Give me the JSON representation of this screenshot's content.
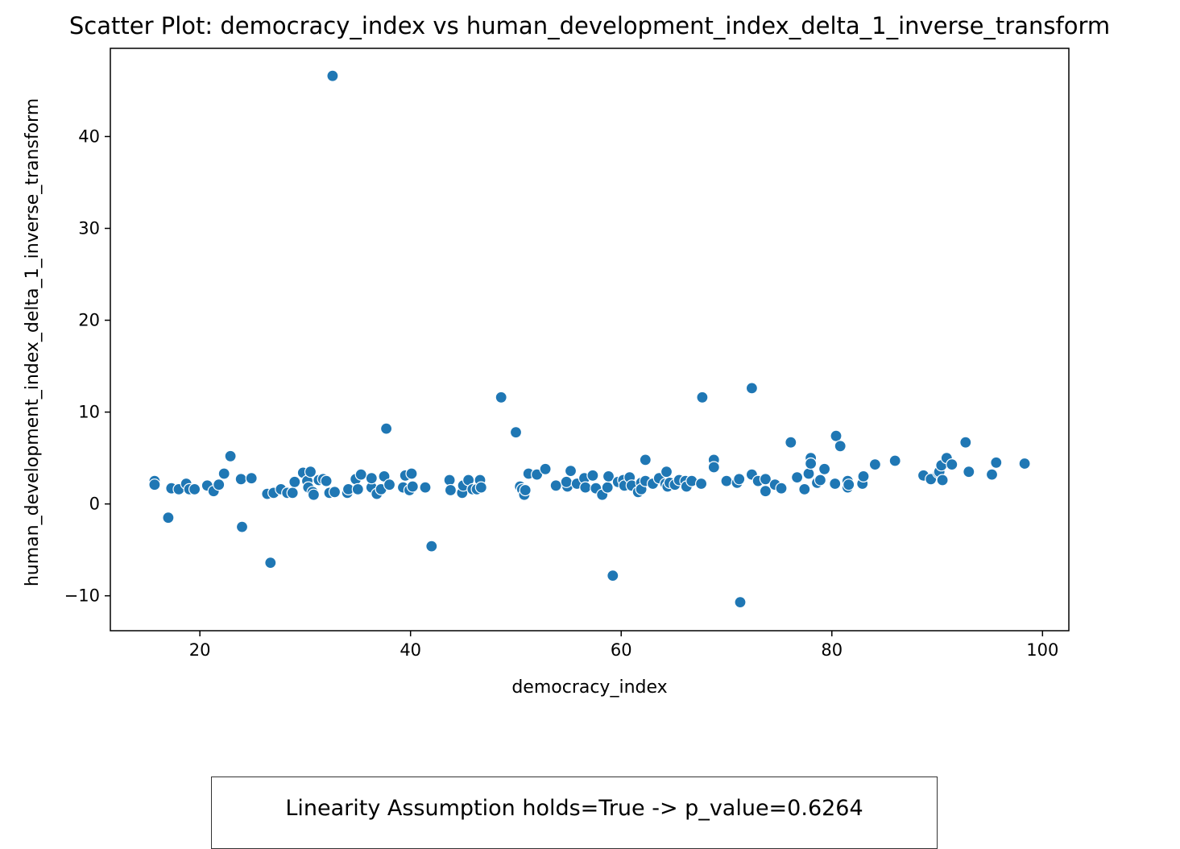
{
  "colors": {
    "point": "#1f77b4",
    "point_edge": "#ffffff",
    "axis": "#000000",
    "annotation_border": "#333333"
  },
  "annotation": {
    "text": "Linearity Assumption holds=True -> p_value=0.6264"
  },
  "chart_data": {
    "type": "scatter",
    "title": "Scatter Plot: democracy_index vs human_development_index_delta_1_inverse_transform",
    "xlabel": "democracy_index",
    "ylabel": "human_development_index_delta_1_inverse_transform",
    "xlim": [
      11.5,
      102.5
    ],
    "ylim": [
      -13.8,
      49.6
    ],
    "xticks": [
      20,
      40,
      60,
      80,
      100
    ],
    "yticks": [
      -10,
      0,
      10,
      20,
      30,
      40
    ],
    "grid": false,
    "legend": "none",
    "points": [
      [
        15.7,
        2.5
      ],
      [
        15.7,
        2.1
      ],
      [
        17.0,
        -1.5
      ],
      [
        17.3,
        1.7
      ],
      [
        18.0,
        1.6
      ],
      [
        18.7,
        2.2
      ],
      [
        19.0,
        1.6
      ],
      [
        19.5,
        1.6
      ],
      [
        20.7,
        2.0
      ],
      [
        21.3,
        1.4
      ],
      [
        21.8,
        2.1
      ],
      [
        22.3,
        3.3
      ],
      [
        22.9,
        5.2
      ],
      [
        23.9,
        2.7
      ],
      [
        24.0,
        -2.5
      ],
      [
        24.9,
        2.8
      ],
      [
        26.4,
        1.1
      ],
      [
        26.7,
        -6.4
      ],
      [
        27.0,
        1.2
      ],
      [
        27.7,
        1.6
      ],
      [
        28.3,
        1.2
      ],
      [
        28.8,
        1.2
      ],
      [
        29.0,
        2.4
      ],
      [
        29.8,
        3.4
      ],
      [
        30.2,
        2.5
      ],
      [
        30.5,
        3.5
      ],
      [
        30.3,
        1.8
      ],
      [
        30.7,
        1.3
      ],
      [
        30.8,
        1.0
      ],
      [
        31.3,
        2.6
      ],
      [
        31.7,
        2.7
      ],
      [
        32.0,
        2.5
      ],
      [
        32.3,
        1.2
      ],
      [
        32.6,
        46.6
      ],
      [
        32.8,
        1.3
      ],
      [
        34.0,
        1.2
      ],
      [
        34.1,
        1.6
      ],
      [
        34.8,
        2.7
      ],
      [
        35.0,
        1.6
      ],
      [
        35.3,
        3.2
      ],
      [
        36.3,
        1.8
      ],
      [
        36.3,
        2.8
      ],
      [
        36.8,
        1.1
      ],
      [
        37.2,
        1.6
      ],
      [
        37.5,
        3.0
      ],
      [
        37.7,
        8.2
      ],
      [
        38.0,
        2.1
      ],
      [
        39.3,
        1.8
      ],
      [
        39.5,
        3.1
      ],
      [
        39.9,
        1.5
      ],
      [
        40.1,
        3.3
      ],
      [
        40.2,
        1.9
      ],
      [
        41.4,
        1.8
      ],
      [
        42.0,
        -4.6
      ],
      [
        43.7,
        2.6
      ],
      [
        43.8,
        1.5
      ],
      [
        44.9,
        1.2
      ],
      [
        45.0,
        2.0
      ],
      [
        45.5,
        2.6
      ],
      [
        45.9,
        1.6
      ],
      [
        46.3,
        1.6
      ],
      [
        46.6,
        2.6
      ],
      [
        46.7,
        1.8
      ],
      [
        48.6,
        11.6
      ],
      [
        50.0,
        7.8
      ],
      [
        50.4,
        1.9
      ],
      [
        50.6,
        1.6
      ],
      [
        50.8,
        1.0
      ],
      [
        50.9,
        1.5
      ],
      [
        51.2,
        3.3
      ],
      [
        52.0,
        3.2
      ],
      [
        52.8,
        3.8
      ],
      [
        53.8,
        2.0
      ],
      [
        54.9,
        1.9
      ],
      [
        54.8,
        2.4
      ],
      [
        55.2,
        3.6
      ],
      [
        55.8,
        2.2
      ],
      [
        56.5,
        2.8
      ],
      [
        56.6,
        1.8
      ],
      [
        57.3,
        3.1
      ],
      [
        57.6,
        1.7
      ],
      [
        58.2,
        1.0
      ],
      [
        58.7,
        1.8
      ],
      [
        58.8,
        3.0
      ],
      [
        59.2,
        -7.8
      ],
      [
        59.7,
        2.4
      ],
      [
        60.2,
        2.6
      ],
      [
        60.3,
        2.0
      ],
      [
        60.8,
        2.9
      ],
      [
        61.0,
        2.0
      ],
      [
        61.6,
        1.3
      ],
      [
        61.9,
        2.3
      ],
      [
        61.9,
        1.6
      ],
      [
        62.3,
        2.5
      ],
      [
        62.3,
        4.8
      ],
      [
        63.0,
        2.2
      ],
      [
        63.6,
        2.8
      ],
      [
        64.2,
        2.2
      ],
      [
        64.3,
        3.5
      ],
      [
        64.4,
        1.9
      ],
      [
        64.6,
        2.3
      ],
      [
        65.1,
        2.1
      ],
      [
        65.5,
        2.6
      ],
      [
        66.1,
        2.5
      ],
      [
        66.2,
        1.9
      ],
      [
        66.7,
        2.5
      ],
      [
        67.6,
        2.2
      ],
      [
        67.7,
        11.6
      ],
      [
        68.8,
        4.8
      ],
      [
        68.8,
        4.0
      ],
      [
        70.0,
        2.5
      ],
      [
        71.0,
        2.3
      ],
      [
        71.3,
        -10.7
      ],
      [
        71.2,
        2.7
      ],
      [
        72.4,
        3.2
      ],
      [
        72.4,
        12.6
      ],
      [
        73.0,
        2.5
      ],
      [
        73.7,
        1.4
      ],
      [
        73.7,
        2.7
      ],
      [
        74.6,
        2.1
      ],
      [
        75.2,
        1.7
      ],
      [
        76.1,
        6.7
      ],
      [
        76.7,
        2.9
      ],
      [
        77.4,
        1.6
      ],
      [
        77.8,
        3.3
      ],
      [
        78.0,
        5.0
      ],
      [
        78.0,
        4.4
      ],
      [
        78.6,
        2.3
      ],
      [
        78.9,
        2.6
      ],
      [
        79.3,
        3.8
      ],
      [
        80.3,
        2.2
      ],
      [
        80.4,
        7.4
      ],
      [
        80.8,
        6.3
      ],
      [
        81.5,
        2.5
      ],
      [
        81.5,
        1.8
      ],
      [
        81.6,
        2.1
      ],
      [
        82.9,
        2.2
      ],
      [
        83.0,
        3.0
      ],
      [
        84.1,
        4.3
      ],
      [
        86.0,
        4.7
      ],
      [
        88.7,
        3.1
      ],
      [
        89.4,
        2.7
      ],
      [
        90.1,
        3.4
      ],
      [
        90.2,
        3.5
      ],
      [
        90.5,
        2.6
      ],
      [
        90.4,
        4.2
      ],
      [
        90.9,
        5.0
      ],
      [
        91.4,
        4.3
      ],
      [
        92.7,
        6.7
      ],
      [
        93.0,
        3.5
      ],
      [
        95.2,
        3.2
      ],
      [
        95.6,
        4.5
      ],
      [
        98.3,
        4.4
      ]
    ]
  }
}
